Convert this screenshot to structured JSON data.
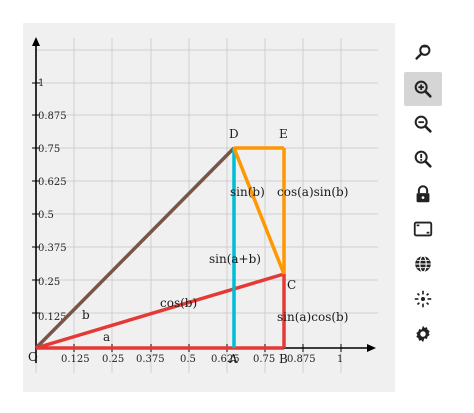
{
  "graph": {
    "x_ticks": [
      "0.125",
      "0.25",
      "0.375",
      "0.5",
      "0.625",
      "0.75",
      "0.875",
      "1"
    ],
    "y_ticks": [
      "0.125",
      "0.25",
      "0.375",
      "0.5",
      "0.625",
      "0.75",
      "0.875",
      "1"
    ],
    "origin_label": "O",
    "points": {
      "D": "D",
      "E": "E",
      "C": "C",
      "A": "A",
      "B": "B"
    },
    "segment_labels": {
      "sin_b": "sin(b)",
      "cos_a_sin_b": "cos(a)sin(b)",
      "sin_a_plus_b": "sin(a+b)",
      "cos_b": "cos(b)",
      "sin_a_cos_b": "sin(a)cos(b)",
      "b": "b",
      "a": "a"
    },
    "colors": {
      "brown": "#795548",
      "red": "#e53935",
      "cyan": "#00bcd4",
      "orange": "#ff9800",
      "grid": "#cfcfcf"
    }
  },
  "toolbar": {
    "tools": [
      {
        "name": "reset-zoom-icon",
        "active": false
      },
      {
        "name": "zoom-in-icon",
        "active": true
      },
      {
        "name": "zoom-out-icon",
        "active": false
      },
      {
        "name": "zoom-fit-icon",
        "active": false
      },
      {
        "name": "lock-icon",
        "active": false
      },
      {
        "name": "fullscreen-icon",
        "active": false
      },
      {
        "name": "globe-icon",
        "active": false
      },
      {
        "name": "center-icon",
        "active": false
      },
      {
        "name": "settings-icon",
        "active": false
      }
    ]
  }
}
